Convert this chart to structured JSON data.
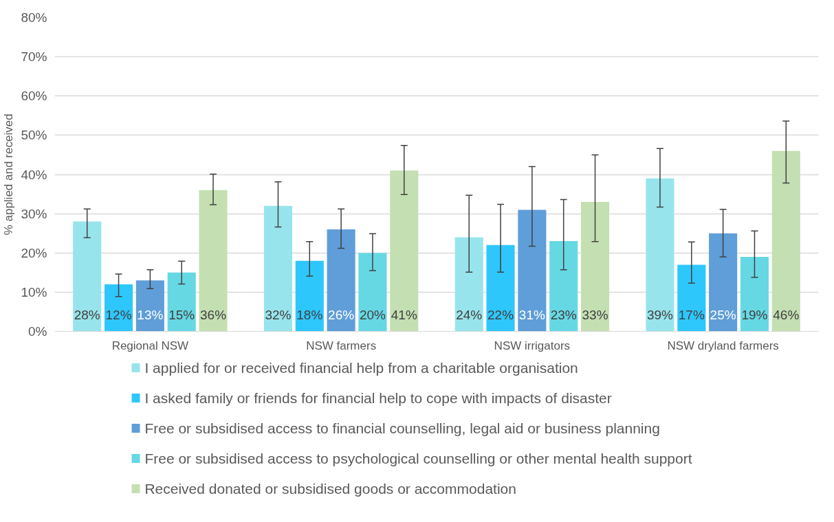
{
  "chart_data": {
    "type": "bar",
    "ylabel": "% applied and received",
    "categories": [
      "Regional NSW",
      "NSW farmers",
      "NSW irrigators",
      "NSW dryland farmers"
    ],
    "series": [
      {
        "name": "I applied for or received financial help from a charitable organisation",
        "color": "#98e4ec",
        "values": [
          28,
          32,
          24,
          39
        ],
        "value_labels": [
          "28%",
          "32%",
          "24%",
          "39%"
        ],
        "errors": [
          [
            23.9,
            31.2
          ],
          [
            26.6,
            38.1
          ],
          [
            15.1,
            34.7
          ],
          [
            31.7,
            46.6
          ]
        ]
      },
      {
        "name": " I asked family or friends for financial help to cope with impacts of disaster",
        "color": "#2ec7fc",
        "values": [
          12,
          18,
          22,
          17
        ],
        "value_labels": [
          "12%",
          "18%",
          "22%",
          "17%"
        ],
        "errors": [
          [
            8.9,
            14.6
          ],
          [
            14.1,
            22.9
          ],
          [
            15.1,
            32.4
          ],
          [
            12.3,
            22.8
          ]
        ]
      },
      {
        "name": "Free or subsidised access to financial counselling, legal aid or business planning",
        "color": "#5f9ed8",
        "values": [
          13,
          26,
          31,
          25
        ],
        "value_labels": [
          "13%",
          "26%",
          "31%",
          "25%"
        ],
        "errors": [
          [
            10.9,
            15.7
          ],
          [
            21.2,
            31.2
          ],
          [
            21.7,
            42.0
          ],
          [
            19.0,
            31.1
          ]
        ]
      },
      {
        "name": "Free or subsidised access to psychological counselling or other mental health support",
        "color": "#66d8e4",
        "values": [
          15,
          20,
          23,
          19
        ],
        "value_labels": [
          "15%",
          "20%",
          "23%",
          "19%"
        ],
        "errors": [
          [
            12.1,
            17.9
          ],
          [
            15.5,
            24.9
          ],
          [
            15.7,
            33.6
          ],
          [
            13.8,
            25.6
          ]
        ]
      },
      {
        "name": "Received donated or subsidised goods or accommodation",
        "color": "#c4dfb2",
        "values": [
          36,
          41,
          33,
          46
        ],
        "value_labels": [
          "36%",
          "41%",
          "33%",
          "46%"
        ],
        "errors": [
          [
            32.3,
            40.1
          ],
          [
            34.9,
            47.4
          ],
          [
            22.9,
            45.0
          ],
          [
            37.8,
            53.6
          ]
        ]
      }
    ],
    "ylim": [
      0,
      80
    ],
    "yticks": [
      {
        "value": 0,
        "label": "0%"
      },
      {
        "value": 10,
        "label": "10%"
      },
      {
        "value": 20,
        "label": "20%"
      },
      {
        "value": 30,
        "label": "30%"
      },
      {
        "value": 40,
        "label": "40%"
      },
      {
        "value": 50,
        "label": "50%"
      },
      {
        "value": 60,
        "label": "60%"
      },
      {
        "value": 70,
        "label": "70%"
      },
      {
        "value": 80,
        "label": "80%"
      }
    ],
    "grid": "y",
    "legend": "bottom"
  }
}
